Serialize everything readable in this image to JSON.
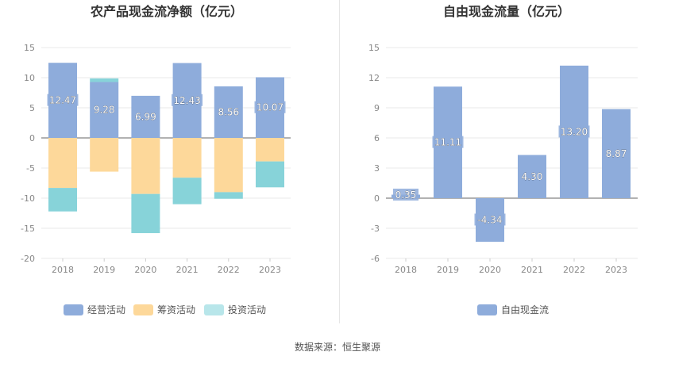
{
  "footer": {
    "source": "数据来源：恒生聚源"
  },
  "colors": {
    "operating": "#8eacdb",
    "financing": "#fdd89a",
    "investing": "#87d3d9",
    "free_cf": "#8eacdb"
  },
  "chart_data": [
    {
      "type": "bar",
      "stacked": true,
      "title": "农产品现金流净额（亿元）",
      "categories": [
        "2018",
        "2019",
        "2020",
        "2021",
        "2022",
        "2023"
      ],
      "series": [
        {
          "name": "经营活动",
          "values": [
            12.47,
            9.28,
            6.99,
            12.43,
            8.56,
            10.07
          ],
          "labels": [
            "12.47",
            "9.28",
            "6.99",
            "12.43",
            "8.56",
            "10.07"
          ]
        },
        {
          "name": "筹资活动",
          "values": [
            -8.3,
            -5.6,
            -9.3,
            -6.6,
            -9.0,
            -3.9
          ]
        },
        {
          "name": "投资活动",
          "values": [
            -3.9,
            0.6,
            -6.5,
            -4.4,
            -1.1,
            -4.3
          ]
        }
      ],
      "ylim": [
        -20,
        15
      ],
      "yticks": [
        15,
        10,
        5,
        0,
        -5,
        -10,
        -15,
        -20
      ],
      "grid": true,
      "legend": "bottom"
    },
    {
      "type": "bar",
      "title": "自由现金流量（亿元）",
      "categories": [
        "2018",
        "2019",
        "2020",
        "2021",
        "2022",
        "2023"
      ],
      "series": [
        {
          "name": "自由现金流",
          "values": [
            0.35,
            11.11,
            -4.34,
            4.3,
            13.2,
            8.87
          ],
          "labels": [
            "0.35",
            "11.11",
            "-4.34",
            "4.30",
            "13.20",
            "8.87"
          ]
        }
      ],
      "ylim": [
        -6,
        15
      ],
      "yticks": [
        15,
        12,
        9,
        6,
        3,
        0,
        -3,
        -6
      ],
      "grid": true,
      "legend": "bottom"
    }
  ]
}
